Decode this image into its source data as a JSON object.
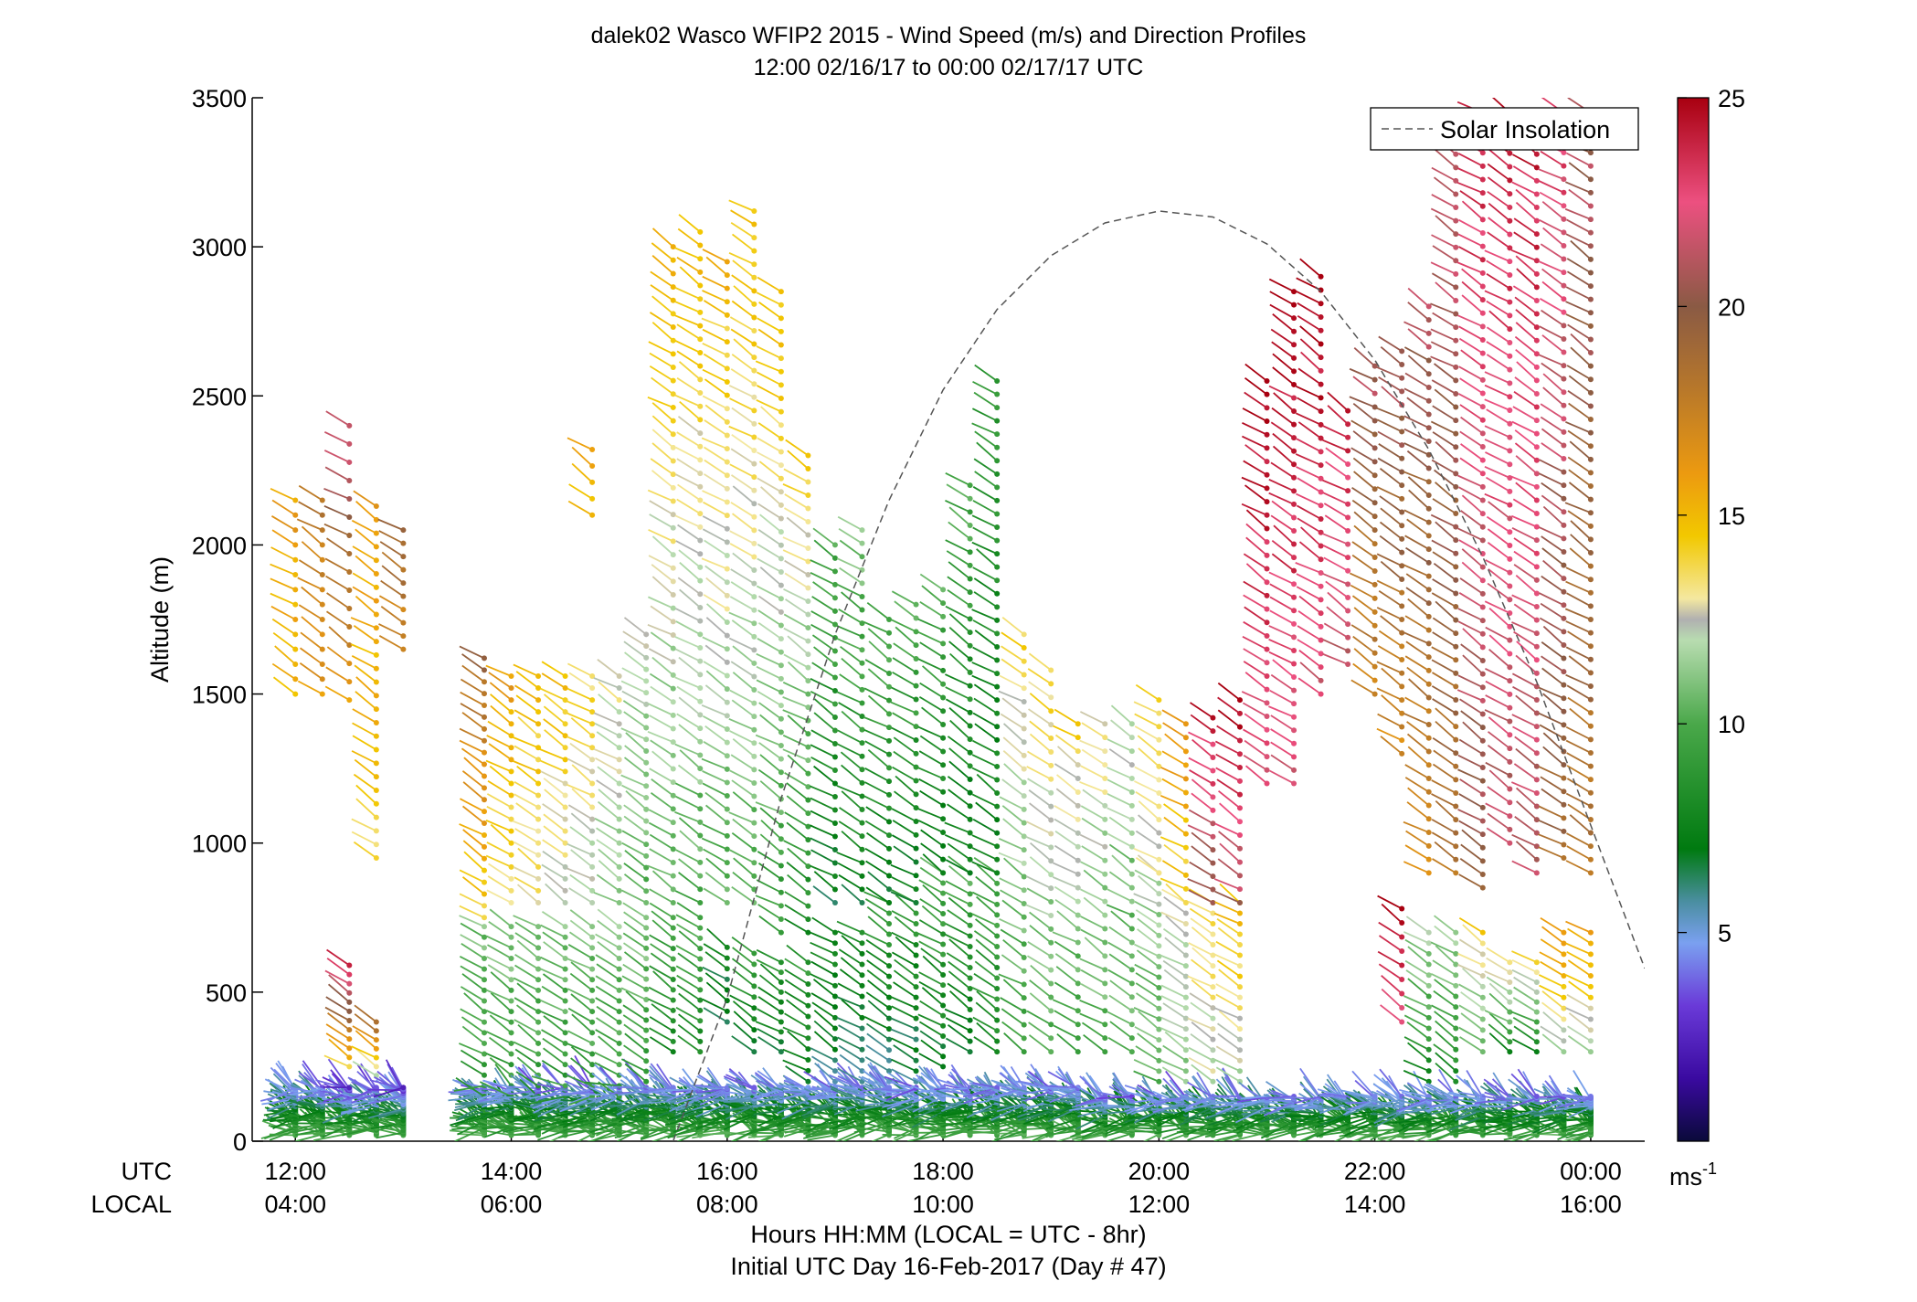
{
  "chart_data": {
    "type": "scatter",
    "subtype": "wind-barb-profile",
    "title": "dalek02 Wasco WFIP2 2015 - Wind Speed (m/s) and Direction Profiles",
    "subtitle": "12:00 02/16/17 to 00:00 02/17/17  UTC",
    "ylabel": "Altitude (m)",
    "xlabel": "Hours HH:MM  (LOCAL = UTC - 8hr)",
    "xlabel2": "Initial UTC Day 16-Feb-2017 (Day # 47)",
    "row_label_utc": "UTC",
    "row_label_local": "LOCAL",
    "xlim_hours": [
      11.6,
      24.5
    ],
    "ylim": [
      0,
      3500
    ],
    "yticks": [
      0,
      500,
      1000,
      1500,
      2000,
      2500,
      3000,
      3500
    ],
    "xticks_utc": [
      "12:00",
      "14:00",
      "16:00",
      "18:00",
      "20:00",
      "22:00",
      "00:00"
    ],
    "xticks_local": [
      "04:00",
      "06:00",
      "08:00",
      "10:00",
      "12:00",
      "14:00",
      "16:00"
    ],
    "xticks_hours": [
      12,
      14,
      16,
      18,
      20,
      22,
      24
    ],
    "colorbar": {
      "min": 0,
      "max": 25,
      "ticks": [
        5,
        10,
        15,
        20,
        25
      ],
      "unit": "ms",
      "unit_exp": "-1"
    },
    "legend": {
      "position": "top-right",
      "entries": [
        "Solar Insolation"
      ]
    },
    "solar_insolation": {
      "style": "dashed",
      "color": "#555555",
      "points": [
        [
          15.5,
          0
        ],
        [
          16.0,
          480
        ],
        [
          16.5,
          1150
        ],
        [
          17.0,
          1700
        ],
        [
          17.5,
          2150
        ],
        [
          18.0,
          2520
        ],
        [
          18.5,
          2790
        ],
        [
          19.0,
          2970
        ],
        [
          19.5,
          3080
        ],
        [
          20.0,
          3120
        ],
        [
          20.5,
          3100
        ],
        [
          21.0,
          3010
        ],
        [
          21.5,
          2850
        ],
        [
          22.0,
          2620
        ],
        [
          22.5,
          2320
        ],
        [
          23.0,
          1960
        ],
        [
          23.5,
          1540
        ],
        [
          24.0,
          1060
        ],
        [
          24.5,
          580
        ]
      ]
    },
    "profiles": [
      {
        "t": 12.0,
        "segments": [
          [
            20,
            180,
            3,
            10,
            4
          ],
          [
            1500,
            2150,
            50,
            15,
            16
          ]
        ]
      },
      {
        "t": 12.25,
        "segments": [
          [
            20,
            180,
            3,
            10,
            4
          ],
          [
            1500,
            2150,
            50,
            16,
            18
          ]
        ]
      },
      {
        "t": 12.5,
        "segments": [
          [
            20,
            180,
            3,
            10,
            3
          ],
          [
            250,
            590,
            30,
            14,
            24
          ],
          [
            1480,
            2400,
            60,
            16,
            22
          ]
        ]
      },
      {
        "t": 12.75,
        "segments": [
          [
            20,
            180,
            3,
            10,
            3
          ],
          [
            220,
            400,
            30,
            12,
            19
          ],
          [
            950,
            2130,
            45,
            14,
            16
          ]
        ]
      },
      {
        "t": 13.0,
        "segments": [
          [
            20,
            180,
            3,
            10,
            3
          ],
          [
            1650,
            2050,
            45,
            17,
            19
          ]
        ]
      },
      {
        "t": 13.75,
        "segments": [
          [
            20,
            180,
            3,
            10,
            4
          ],
          [
            150,
            720,
            35,
            9,
            11
          ],
          [
            750,
            1620,
            40,
            14,
            19
          ]
        ]
      },
      {
        "t": 14.0,
        "segments": [
          [
            20,
            180,
            3,
            10,
            4
          ],
          [
            150,
            720,
            35,
            9,
            11
          ],
          [
            800,
            1560,
            40,
            13,
            16
          ]
        ]
      },
      {
        "t": 14.25,
        "segments": [
          [
            20,
            180,
            3,
            10,
            4
          ],
          [
            150,
            720,
            35,
            9,
            11
          ],
          [
            800,
            1560,
            40,
            13,
            15
          ]
        ]
      },
      {
        "t": 14.5,
        "segments": [
          [
            20,
            180,
            3,
            10,
            4
          ],
          [
            150,
            720,
            35,
            9,
            11
          ],
          [
            800,
            1560,
            40,
            12,
            15
          ]
        ]
      },
      {
        "t": 14.75,
        "segments": [
          [
            20,
            180,
            3,
            10,
            4
          ],
          [
            150,
            720,
            35,
            9,
            11
          ],
          [
            800,
            1560,
            40,
            12,
            14
          ],
          [
            2100,
            2320,
            60,
            15,
            16
          ]
        ]
      },
      {
        "t": 15.0,
        "segments": [
          [
            20,
            180,
            3,
            10,
            4
          ],
          [
            150,
            720,
            35,
            9,
            11
          ],
          [
            800,
            1560,
            40,
            11,
            13
          ]
        ]
      },
      {
        "t": 15.25,
        "segments": [
          [
            20,
            180,
            3,
            10,
            4
          ],
          [
            200,
            750,
            35,
            9,
            11
          ],
          [
            800,
            1700,
            40,
            10,
            12
          ]
        ]
      },
      {
        "t": 15.5,
        "segments": [
          [
            20,
            180,
            3,
            10,
            4
          ],
          [
            300,
            750,
            35,
            8,
            10
          ],
          [
            800,
            3000,
            45,
            10,
            15
          ]
        ]
      },
      {
        "t": 15.75,
        "segments": [
          [
            20,
            180,
            3,
            10,
            4
          ],
          [
            300,
            750,
            35,
            8,
            10
          ],
          [
            800,
            3050,
            45,
            10,
            15
          ]
        ]
      },
      {
        "t": 16.0,
        "segments": [
          [
            20,
            180,
            3,
            10,
            4
          ],
          [
            400,
            650,
            35,
            6,
            8
          ],
          [
            800,
            2950,
            45,
            10,
            15
          ]
        ]
      },
      {
        "t": 16.25,
        "segments": [
          [
            20,
            180,
            3,
            10,
            4
          ],
          [
            300,
            630,
            35,
            7,
            9
          ],
          [
            800,
            3120,
            45,
            10,
            15
          ]
        ]
      },
      {
        "t": 16.5,
        "segments": [
          [
            20,
            180,
            3,
            10,
            4
          ],
          [
            300,
            600,
            35,
            7,
            9
          ],
          [
            700,
            2850,
            45,
            9,
            15
          ]
        ]
      },
      {
        "t": 16.75,
        "segments": [
          [
            20,
            180,
            3,
            10,
            4
          ],
          [
            200,
            600,
            35,
            7,
            9
          ],
          [
            700,
            2300,
            45,
            8,
            14
          ]
        ]
      },
      {
        "t": 17.0,
        "segments": [
          [
            20,
            180,
            3,
            10,
            4
          ],
          [
            200,
            700,
            35,
            6,
            8
          ],
          [
            800,
            2000,
            45,
            7,
            10
          ]
        ]
      },
      {
        "t": 17.25,
        "segments": [
          [
            20,
            180,
            3,
            10,
            4
          ],
          [
            200,
            700,
            35,
            6,
            8
          ],
          [
            800,
            2050,
            45,
            7,
            11
          ]
        ]
      },
      {
        "t": 17.5,
        "segments": [
          [
            20,
            180,
            3,
            10,
            4
          ],
          [
            200,
            800,
            35,
            6,
            9
          ],
          [
            800,
            1750,
            45,
            7,
            10
          ]
        ]
      },
      {
        "t": 17.75,
        "segments": [
          [
            20,
            180,
            3,
            10,
            4
          ],
          [
            200,
            800,
            35,
            6,
            9
          ],
          [
            800,
            1800,
            45,
            7,
            10
          ]
        ]
      },
      {
        "t": 18.0,
        "segments": [
          [
            20,
            180,
            3,
            10,
            4
          ],
          [
            250,
            900,
            35,
            7,
            10
          ],
          [
            900,
            1850,
            45,
            7,
            10
          ]
        ]
      },
      {
        "t": 18.25,
        "segments": [
          [
            20,
            180,
            3,
            10,
            4
          ],
          [
            300,
            900,
            35,
            7,
            10
          ],
          [
            900,
            2200,
            45,
            7,
            10
          ]
        ]
      },
      {
        "t": 18.5,
        "segments": [
          [
            20,
            180,
            3,
            10,
            4
          ],
          [
            300,
            900,
            35,
            8,
            10
          ],
          [
            900,
            2550,
            45,
            7,
            9
          ]
        ]
      },
      {
        "t": 18.75,
        "segments": [
          [
            20,
            180,
            3,
            10,
            4
          ],
          [
            300,
            1700,
            45,
            9,
            14
          ]
        ]
      },
      {
        "t": 19.0,
        "segments": [
          [
            20,
            180,
            3,
            10,
            4
          ],
          [
            300,
            1580,
            45,
            10,
            14
          ]
        ]
      },
      {
        "t": 19.25,
        "segments": [
          [
            20,
            180,
            3,
            10,
            4
          ],
          [
            300,
            1400,
            45,
            9,
            14
          ]
        ]
      },
      {
        "t": 19.5,
        "segments": [
          [
            20,
            150,
            3,
            10,
            4
          ],
          [
            300,
            1400,
            45,
            10,
            13
          ]
        ]
      },
      {
        "t": 19.75,
        "segments": [
          [
            20,
            150,
            3,
            10,
            4
          ],
          [
            300,
            1400,
            45,
            10,
            12
          ]
        ]
      },
      {
        "t": 20.0,
        "segments": [
          [
            20,
            150,
            3,
            10,
            4
          ],
          [
            200,
            900,
            35,
            10,
            12
          ],
          [
            900,
            1480,
            45,
            13,
            14
          ]
        ]
      },
      {
        "t": 20.25,
        "segments": [
          [
            20,
            150,
            3,
            10,
            4
          ],
          [
            200,
            800,
            35,
            11,
            13
          ],
          [
            800,
            1400,
            45,
            14,
            16
          ]
        ]
      },
      {
        "t": 20.5,
        "segments": [
          [
            20,
            150,
            3,
            10,
            4
          ],
          [
            200,
            800,
            35,
            12,
            14
          ],
          [
            800,
            1420,
            45,
            20,
            24
          ]
        ]
      },
      {
        "t": 20.75,
        "segments": [
          [
            20,
            150,
            3,
            10,
            4
          ],
          [
            200,
            800,
            35,
            12,
            15
          ],
          [
            800,
            1480,
            45,
            21,
            25
          ]
        ]
      },
      {
        "t": 21.0,
        "segments": [
          [
            20,
            150,
            3,
            10,
            4
          ],
          [
            1200,
            2550,
            45,
            22,
            25
          ]
        ]
      },
      {
        "t": 21.25,
        "segments": [
          [
            20,
            150,
            3,
            10,
            4
          ],
          [
            1200,
            2850,
            45,
            22,
            25
          ]
        ]
      },
      {
        "t": 21.5,
        "segments": [
          [
            20,
            150,
            3,
            10,
            4
          ],
          [
            1500,
            2900,
            45,
            22,
            25
          ]
        ]
      },
      {
        "t": 21.75,
        "segments": [
          [
            20,
            150,
            3,
            10,
            4
          ],
          [
            1600,
            2450,
            45,
            21,
            24
          ]
        ]
      },
      {
        "t": 22.0,
        "segments": [
          [
            20,
            150,
            3,
            10,
            4
          ],
          [
            1500,
            2600,
            45,
            17,
            21
          ]
        ]
      },
      {
        "t": 22.25,
        "segments": [
          [
            20,
            150,
            3,
            10,
            4
          ],
          [
            400,
            780,
            50,
            22,
            25
          ],
          [
            1300,
            2650,
            45,
            17,
            21
          ]
        ]
      },
      {
        "t": 22.5,
        "segments": [
          [
            20,
            150,
            3,
            10,
            4
          ],
          [
            200,
            700,
            35,
            8,
            12
          ],
          [
            900,
            2800,
            45,
            17,
            21
          ]
        ]
      },
      {
        "t": 22.75,
        "segments": [
          [
            20,
            150,
            3,
            10,
            4
          ],
          [
            200,
            700,
            35,
            8,
            12
          ],
          [
            900,
            3400,
            45,
            18,
            22
          ]
        ]
      },
      {
        "t": 23.0,
        "segments": [
          [
            20,
            150,
            3,
            10,
            4
          ],
          [
            300,
            700,
            35,
            10,
            14
          ],
          [
            850,
            3450,
            45,
            20,
            24
          ]
        ]
      },
      {
        "t": 23.25,
        "segments": [
          [
            20,
            150,
            3,
            10,
            4
          ],
          [
            300,
            600,
            35,
            8,
            14
          ],
          [
            1000,
            3450,
            45,
            21,
            24
          ]
        ]
      },
      {
        "t": 23.5,
        "segments": [
          [
            20,
            150,
            3,
            10,
            4
          ],
          [
            300,
            600,
            35,
            8,
            14
          ],
          [
            900,
            3400,
            45,
            21,
            24
          ]
        ]
      },
      {
        "t": 23.75,
        "segments": [
          [
            20,
            150,
            3,
            10,
            4
          ],
          [
            300,
            700,
            35,
            12,
            16
          ],
          [
            950,
            3450,
            45,
            19,
            23
          ]
        ]
      },
      {
        "t": 24.0,
        "segments": [
          [
            20,
            150,
            3,
            10,
            4
          ],
          [
            300,
            700,
            35,
            12,
            16
          ],
          [
            900,
            3450,
            45,
            18,
            21
          ]
        ]
      }
    ]
  }
}
